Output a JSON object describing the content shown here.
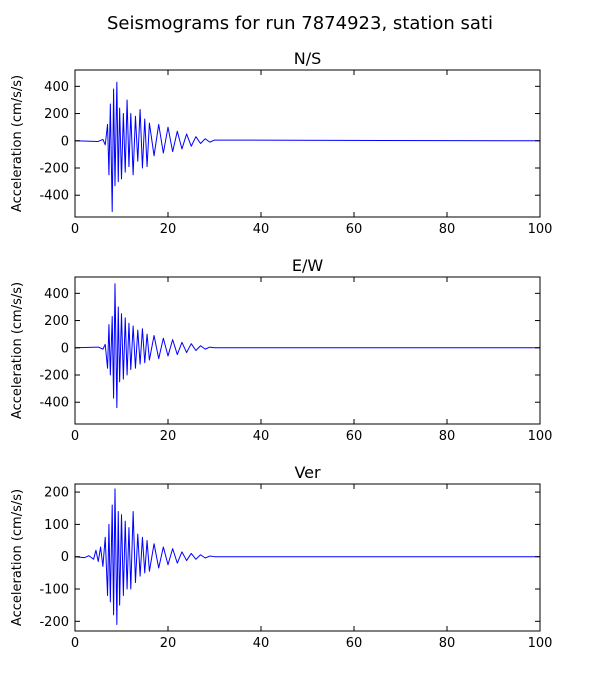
{
  "figure": {
    "title": "Seismograms for run 7874923, station sati"
  },
  "chart_data": [
    {
      "type": "line",
      "title": "N/S",
      "xlabel": "",
      "ylabel": "Acceleration (cm/s/s)",
      "xlim": [
        0,
        100
      ],
      "ylim": [
        -560,
        520
      ],
      "xticks": [
        0,
        20,
        40,
        60,
        80,
        100
      ],
      "yticks": [
        -400,
        -200,
        0,
        200,
        400
      ],
      "grid": false,
      "color": "#0000ff",
      "series": [
        {
          "x": [
            0,
            5,
            6,
            6.5,
            7,
            7.3,
            7.6,
            8,
            8.3,
            8.6,
            9,
            9.3,
            9.6,
            10,
            10.4,
            10.8,
            11.2,
            11.6,
            12,
            12.5,
            13,
            13.5,
            14,
            14.5,
            15,
            15.5,
            16,
            17,
            18,
            19,
            20,
            21,
            22,
            23,
            24,
            25,
            26,
            27,
            28,
            29,
            30,
            100
          ],
          "y": [
            0,
            -5,
            10,
            -30,
            120,
            -250,
            270,
            -520,
            380,
            -330,
            430,
            -300,
            240,
            -280,
            200,
            -230,
            300,
            -190,
            200,
            -250,
            180,
            -150,
            230,
            -200,
            160,
            -190,
            130,
            -110,
            120,
            -90,
            100,
            -80,
            70,
            -60,
            50,
            -40,
            30,
            -20,
            15,
            -10,
            5,
            0
          ]
        }
      ]
    },
    {
      "type": "line",
      "title": "E/W",
      "xlabel": "",
      "ylabel": "Acceleration (cm/s/s)",
      "xlim": [
        0,
        100
      ],
      "ylim": [
        -560,
        520
      ],
      "xticks": [
        0,
        20,
        40,
        60,
        80,
        100
      ],
      "yticks": [
        -400,
        -200,
        0,
        200,
        400
      ],
      "grid": false,
      "color": "#0000ff",
      "series": [
        {
          "x": [
            0,
            5,
            6,
            6.5,
            7,
            7.3,
            7.6,
            8,
            8.3,
            8.6,
            9,
            9.3,
            9.6,
            10,
            10.4,
            10.8,
            11.2,
            11.6,
            12,
            12.5,
            13,
            13.5,
            14,
            14.5,
            15,
            15.5,
            16,
            17,
            18,
            19,
            20,
            21,
            22,
            23,
            24,
            25,
            26,
            27,
            28,
            29,
            30,
            100
          ],
          "y": [
            0,
            5,
            -10,
            25,
            -150,
            170,
            -200,
            230,
            -370,
            470,
            -440,
            300,
            -250,
            250,
            -230,
            220,
            -200,
            180,
            -160,
            160,
            -150,
            130,
            -120,
            140,
            -110,
            100,
            -90,
            90,
            -80,
            70,
            -60,
            60,
            -50,
            40,
            -35,
            30,
            -20,
            15,
            -10,
            5,
            0,
            0
          ]
        }
      ]
    },
    {
      "type": "line",
      "title": "Ver",
      "xlabel": "",
      "ylabel": "Acceleration (cm/s/s)",
      "xlim": [
        0,
        100
      ],
      "ylim": [
        -230,
        225
      ],
      "xticks": [
        0,
        20,
        40,
        60,
        80,
        100
      ],
      "yticks": [
        -200,
        -100,
        0,
        100,
        200
      ],
      "grid": false,
      "color": "#0000ff",
      "series": [
        {
          "x": [
            0,
            2,
            3,
            4,
            4.5,
            5,
            5.5,
            6,
            6.5,
            7,
            7.3,
            7.6,
            8,
            8.3,
            8.6,
            9,
            9.3,
            9.6,
            10,
            10.4,
            10.8,
            11.2,
            11.6,
            12,
            12.5,
            13,
            13.5,
            14,
            14.5,
            15,
            15.5,
            16,
            17,
            18,
            19,
            20,
            21,
            22,
            23,
            24,
            25,
            26,
            27,
            28,
            29,
            30,
            100
          ],
          "y": [
            0,
            -3,
            3,
            -8,
            20,
            -15,
            30,
            -30,
            60,
            -120,
            100,
            -140,
            160,
            -180,
            210,
            -210,
            140,
            -150,
            130,
            -120,
            110,
            -100,
            90,
            -100,
            140,
            -80,
            70,
            -60,
            60,
            -50,
            50,
            -45,
            40,
            -35,
            30,
            -25,
            25,
            -20,
            15,
            -12,
            10,
            -8,
            6,
            -4,
            2,
            0,
            0
          ]
        }
      ]
    }
  ]
}
